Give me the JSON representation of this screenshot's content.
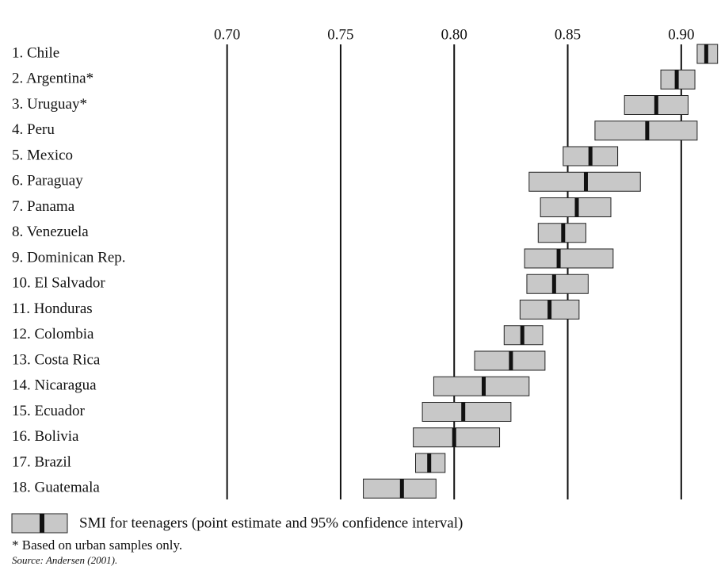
{
  "chart_data": {
    "type": "interval",
    "categories": [
      "1. Chile",
      "2. Argentina*",
      "3. Uruguay*",
      "4. Peru",
      "5. Mexico",
      "6. Paraguay",
      "7. Panama",
      "8. Venezuela",
      "9. Dominican Rep.",
      "10. El Salvador",
      "11. Honduras",
      "12. Colombia",
      "13. Costa Rica",
      "14. Nicaragua",
      "15. Ecuador",
      "16. Bolivia",
      "17. Brazil",
      "18. Guatemala"
    ],
    "low": [
      0.907,
      0.891,
      0.875,
      0.862,
      0.848,
      0.833,
      0.838,
      0.837,
      0.831,
      0.832,
      0.829,
      0.822,
      0.809,
      0.791,
      0.786,
      0.782,
      0.783,
      0.76
    ],
    "point": [
      0.911,
      0.898,
      0.889,
      0.885,
      0.86,
      0.858,
      0.854,
      0.848,
      0.846,
      0.844,
      0.842,
      0.83,
      0.825,
      0.813,
      0.804,
      0.8,
      0.789,
      0.777
    ],
    "high": [
      0.916,
      0.906,
      0.903,
      0.907,
      0.872,
      0.882,
      0.869,
      0.858,
      0.87,
      0.859,
      0.855,
      0.839,
      0.84,
      0.833,
      0.825,
      0.82,
      0.796,
      0.792
    ],
    "color": "#c8c8c8",
    "xlim": [
      0.6,
      0.9175
    ],
    "xticks": [
      {
        "value": 0.7,
        "label": "0.70"
      },
      {
        "value": 0.75,
        "label": "0.75"
      },
      {
        "value": 0.8,
        "label": "0.80"
      },
      {
        "value": 0.85,
        "label": "0.85"
      },
      {
        "value": 0.9,
        "label": "0.90"
      }
    ],
    "grid": true,
    "legend": "SMI for teenagers (point estimate and 95% confidence interval)",
    "notes": [
      "* Based on urban samples only.",
      "Source: Andersen (2001)."
    ]
  }
}
